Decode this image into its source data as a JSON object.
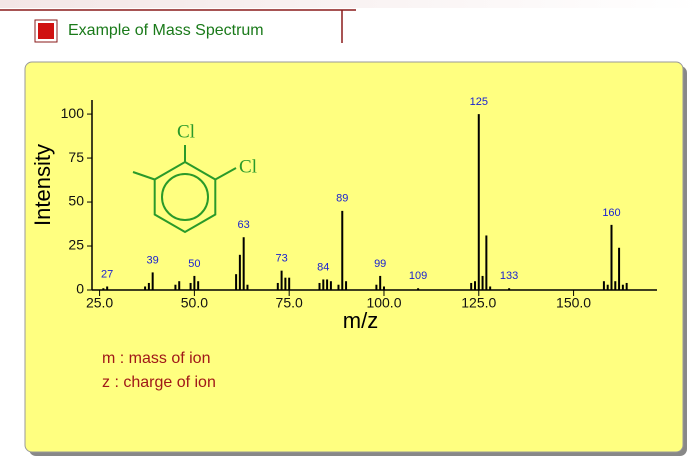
{
  "header": {
    "title": "Example of Mass Spectrum"
  },
  "chart_data": {
    "type": "bar",
    "x_label": "m/z",
    "y_label": "Intensity",
    "x": [
      26,
      27,
      37,
      38,
      39,
      45,
      46,
      49,
      50,
      51,
      61,
      62,
      63,
      64,
      72,
      73,
      74,
      75,
      83,
      84,
      85,
      86,
      88,
      89,
      90,
      98,
      99,
      100,
      109,
      123,
      124,
      125,
      126,
      127,
      128,
      133,
      158,
      159,
      160,
      161,
      162,
      163,
      164
    ],
    "values": [
      1,
      2,
      2,
      4,
      10,
      3,
      5,
      4,
      8,
      5,
      9,
      20,
      30,
      3,
      4,
      11,
      7,
      7,
      4,
      6,
      6,
      5,
      3,
      45,
      5,
      3,
      8,
      2,
      1,
      4,
      5,
      100,
      8,
      31,
      2,
      1,
      5,
      3,
      37,
      5,
      24,
      3,
      4
    ],
    "labeled_peaks": [
      27,
      39,
      50,
      63,
      73,
      84,
      89,
      99,
      109,
      125,
      133,
      160
    ],
    "color": "#000000",
    "label_color": "#1a22d0",
    "xlim": [
      23,
      172
    ],
    "ylim": [
      0,
      108
    ],
    "xticks": [
      {
        "value": 25,
        "label": "25.0"
      },
      {
        "value": 50,
        "label": "50.0"
      },
      {
        "value": 75,
        "label": "75.0"
      },
      {
        "value": 100,
        "label": "100.0"
      },
      {
        "value": 125,
        "label": "125.0"
      },
      {
        "value": 150,
        "label": "150.0"
      }
    ],
    "yticks": [
      0,
      25,
      50,
      75,
      100
    ]
  },
  "structure": {
    "labels": [
      "Cl",
      "Cl"
    ]
  },
  "notes": [
    "m : mass of ion",
    "z : charge of ion"
  ]
}
